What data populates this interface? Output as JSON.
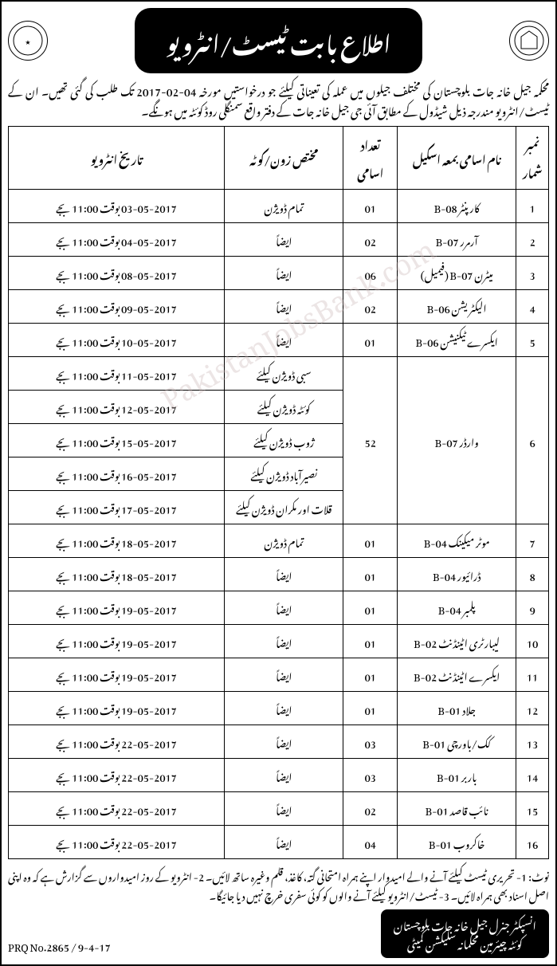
{
  "header": {
    "title": "اطلاع بابت ٹیسٹ/انٹرویو"
  },
  "intro": {
    "line1": "محکمہ جیل خانہ جات بلوچستان کی مختلف جیلوں میں عملہ کی تعیناتی کیلئے جو درخواستیں مورخہ 04-02-2017 تک طلب کی گئی تھیں۔ ان کے ٹیسٹ/انٹرویو",
    "line2": "مندرجہ ذیل شیڈول کے مطابق آئی جی جیل خانہ جات کے دفتر واقع سمنگلی روڈ کوئٹہ میں ہونگے۔"
  },
  "table": {
    "headers": {
      "sn": "نمبر شمار",
      "name": "نام اسامی بمعہ اسکیل",
      "count": "تعداد اسامی",
      "quota": "مختص زون/کوٹہ",
      "date": "تاریخ انٹرویو"
    },
    "rows": [
      {
        "sn": "1",
        "name": "کارپنٹر B-08",
        "count": "01",
        "quota": "تمام ڈویژن",
        "date": "03-05-2017 بوقت 11:00 بجے"
      },
      {
        "sn": "2",
        "name": "آرمرر B-07",
        "count": "02",
        "quota": "ایضاً",
        "date": "04-05-2017 بوقت 11:00 بجے"
      },
      {
        "sn": "3",
        "name": "میٹرن B-07 (فیمیل)",
        "count": "06",
        "quota": "ایضاً",
        "date": "08-05-2017 بوقت 11:00 بجے"
      },
      {
        "sn": "4",
        "name": "الیکٹریشن B-06",
        "count": "02",
        "quota": "ایضاً",
        "date": "09-05-2017 بوقت 11:00 بجے"
      },
      {
        "sn": "5",
        "name": "ایکسرے ٹیکنیشن B-06",
        "count": "01",
        "quota": "ایضاً",
        "date": "10-05-2017 بوقت 11:00 بجے"
      },
      {
        "sn": "6",
        "name": "وارڈر B-07",
        "count": "52",
        "quota": "سبی ڈویژن کیلئے",
        "date": "11-05-2017 بوقت 11:00 بجے"
      },
      {
        "sn": "",
        "name": "",
        "count": "",
        "quota": "کوئٹہ ڈویژن کیلئے",
        "date": "12-05-2017 بوقت 11:00 بجے"
      },
      {
        "sn": "",
        "name": "",
        "count": "",
        "quota": "ژوب ڈویژن کیلئے",
        "date": "15-05-2017 بوقت 11:00 بجے"
      },
      {
        "sn": "",
        "name": "",
        "count": "",
        "quota": "نصیرآباد ڈویژن کیلئے",
        "date": "16-05-2017 بوقت 11:00 بجے"
      },
      {
        "sn": "",
        "name": "",
        "count": "",
        "quota": "قلات اور مکران ڈویژن کیلئے",
        "date": "17-05-2017 بوقت 11:00 بجے"
      },
      {
        "sn": "7",
        "name": "موٹر میکینک B-04",
        "count": "01",
        "quota": "تمام ڈویژن",
        "date": "18-05-2017 بوقت 11:00 بجے"
      },
      {
        "sn": "8",
        "name": "ڈرائیور B-04",
        "count": "01",
        "quota": "ایضاً",
        "date": "18-05-2017 بوقت 11:00 بجے"
      },
      {
        "sn": "9",
        "name": "پلمبر B-04",
        "count": "01",
        "quota": "ایضاً",
        "date": "19-05-2017 بوقت 11:00 بجے"
      },
      {
        "sn": "10",
        "name": "لیبارٹری اٹینڈنٹ B-02",
        "count": "01",
        "quota": "ایضاً",
        "date": "19-05-2017 بوقت 11:00 بجے"
      },
      {
        "sn": "11",
        "name": "ایکسرے اٹینڈنٹ B-02",
        "count": "01",
        "quota": "ایضاً",
        "date": "19-05-2017 بوقت 11:00 بجے"
      },
      {
        "sn": "12",
        "name": "جلاد B-01",
        "count": "01",
        "quota": "ایضاً",
        "date": "19-05-2017 بوقت 11:00 بجے"
      },
      {
        "sn": "13",
        "name": "کک/باورچی B-01",
        "count": "03",
        "quota": "ایضاً",
        "date": "22-05-2017 بوقت 11:00 بجے"
      },
      {
        "sn": "14",
        "name": "باربر B-01",
        "count": "03",
        "quota": "ایضاً",
        "date": "22-05-2017 بوقت 11:00 بجے"
      },
      {
        "sn": "15",
        "name": "نائب قاصد B-01",
        "count": "02",
        "quota": "ایضاً",
        "date": "22-05-2017 بوقت 11:00 بجے"
      },
      {
        "sn": "16",
        "name": "خاکروب B-01",
        "count": "04",
        "quota": "ایضاً",
        "date": "22-05-2017 بوقت 11:00 بجے"
      }
    ]
  },
  "notes": {
    "text": "نوٹ: 1- تحریری ٹیسٹ کیلئے آنے والے امیدوار اپنے ہمراہ امتحانی گتہ، کاغذ، قلم وغیرہ ساتھ لائیں۔ 2- انٹرویو کے روز امیدواروں سے گزارش ہے کہ وہ اپنی اصل اسناد بھی ہمراہ لائیں۔ 3- ٹیسٹ/انٹرویو کیلئے آنے والوں کو کوئی سفری خرچ نہیں دیا جائیگا۔"
  },
  "footer": {
    "prq": "PRQ No.2865 / 9-4-17",
    "signature1": "انسپکٹر جنرل جیل خانہ جات بلوچستان",
    "signature2": "کوئٹہ چیئرمین محکمانہ سلیکشن کمیٹی"
  },
  "watermark": "PakistanJobsBank.com"
}
